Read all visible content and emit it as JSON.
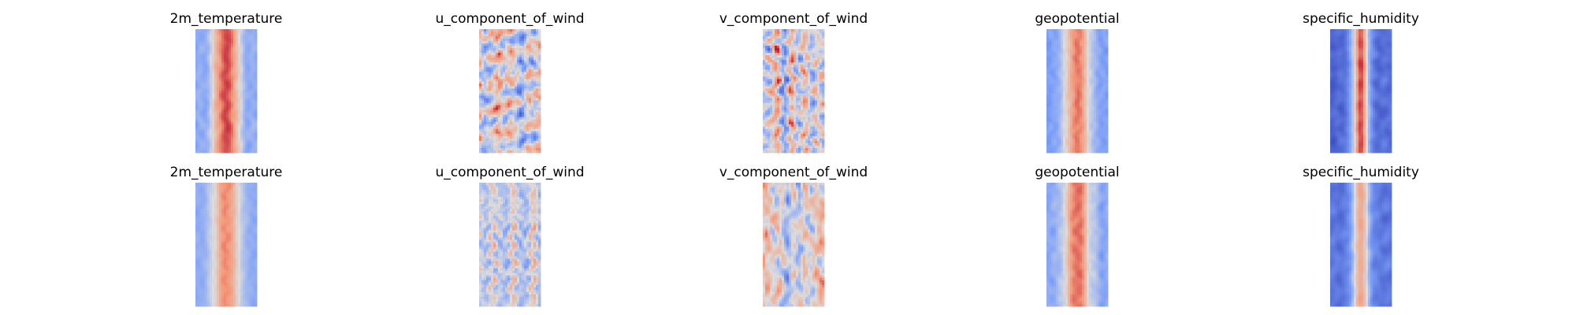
{
  "chart_data": {
    "type": "heatmap",
    "layout": "grid of 2 rows by 5 columns of field images",
    "colormap": "coolwarm",
    "axes": "hidden",
    "grid": false,
    "legend": "none",
    "panels": [
      {
        "title": "2m_temperature",
        "pattern": "broad warm band in center, cool at edges"
      },
      {
        "title": "u_component_of_wind",
        "pattern": "streaky mixed with vertical jets"
      },
      {
        "title": "v_component_of_wind",
        "pattern": "small eddies mixed warm and cool"
      },
      {
        "title": "geopotential",
        "pattern": "warm center band, blue edges"
      },
      {
        "title": "specific_humidity",
        "pattern": "narrow warm core, deep blue edges"
      },
      {
        "title": "2m_temperature",
        "pattern": "broad warm band, slightly lighter"
      },
      {
        "title": "u_component_of_wind",
        "pattern": "fine streaks, cooler overall"
      },
      {
        "title": "v_component_of_wind",
        "pattern": "small eddies, muted"
      },
      {
        "title": "geopotential",
        "pattern": "warm center band, blue edges"
      },
      {
        "title": "specific_humidity",
        "pattern": "narrow light core, blue edges"
      }
    ]
  }
}
